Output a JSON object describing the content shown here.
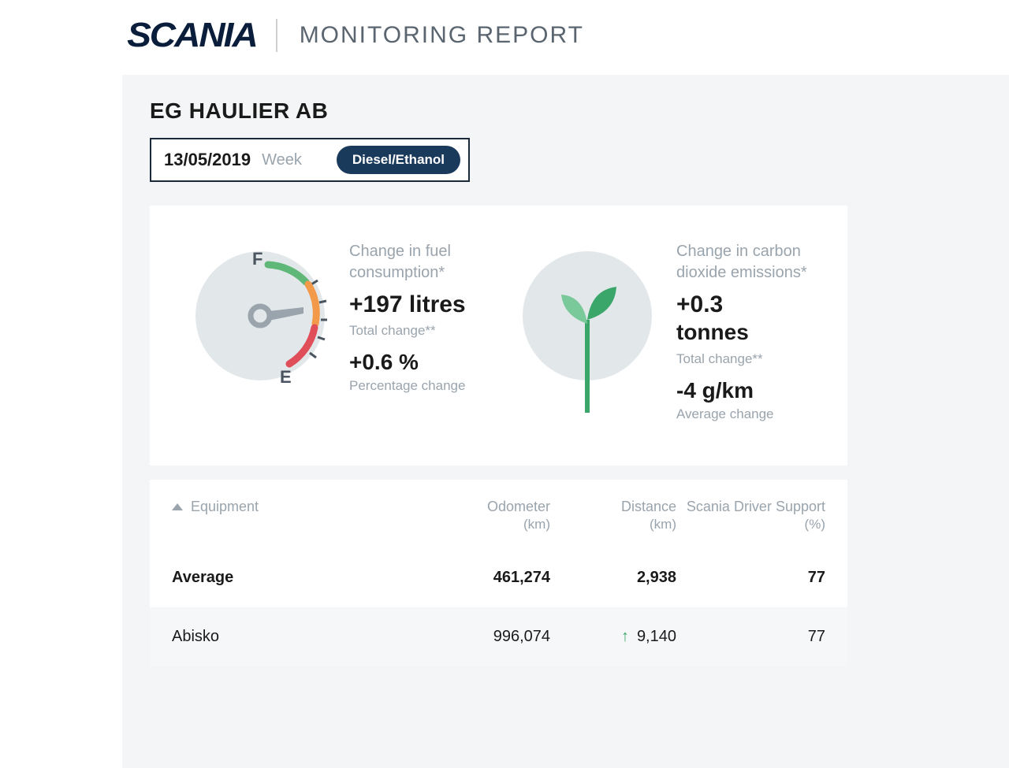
{
  "header": {
    "brand": "SCANIA",
    "title": "MONITORING REPORT"
  },
  "company": "EG HAULIER AB",
  "filter": {
    "date": "13/05/2019",
    "period": "Week",
    "fuel_badge": "Diesel/Ethanol"
  },
  "kpi": {
    "fuel": {
      "label": "Change in fuel consumption*",
      "value": "+197 litres",
      "sub1": "Total change**",
      "value2": "+0.6 %",
      "sub2": "Percentage change",
      "gauge": {
        "bg": "#e2e8ea",
        "green": "#5fb877",
        "orange": "#f2994a",
        "red": "#e04e5a",
        "needle": "#9aa4ad",
        "letter_f": "F",
        "letter_e": "E"
      }
    },
    "co2": {
      "label": "Change in carbon dioxide emissions*",
      "value": "+0.3",
      "unit": "tonnes",
      "sub1": "Total change**",
      "value2": "-4 g/km",
      "sub2": "Average change",
      "plant": {
        "bg": "#e2e8ea",
        "stem": "#3aa66a",
        "leaf_dark": "#3aa66a",
        "leaf_light": "#7ac99a"
      }
    }
  },
  "table": {
    "columns": {
      "equipment": "Equipment",
      "odometer": "Odometer",
      "odometer_unit": "(km)",
      "distance": "Distance",
      "distance_unit": "(km)",
      "sds": "Scania Driver Support",
      "sds_unit": "(%)"
    },
    "rows": [
      {
        "name": "Average",
        "odometer": "461,274",
        "distance": "2,938",
        "trend": "",
        "sds": "77",
        "bold": true
      },
      {
        "name": "Abisko",
        "odometer": "996,074",
        "distance": "9,140",
        "trend": "up",
        "sds": "77",
        "bold": false
      }
    ]
  },
  "colors": {
    "brand_navy": "#0a1e3c",
    "text_dark": "#1a1a1a",
    "text_muted": "#9aa4ad",
    "panel_bg": "#f4f5f6",
    "badge_bg": "#1a3a5c",
    "trend_green": "#3aa66a"
  }
}
